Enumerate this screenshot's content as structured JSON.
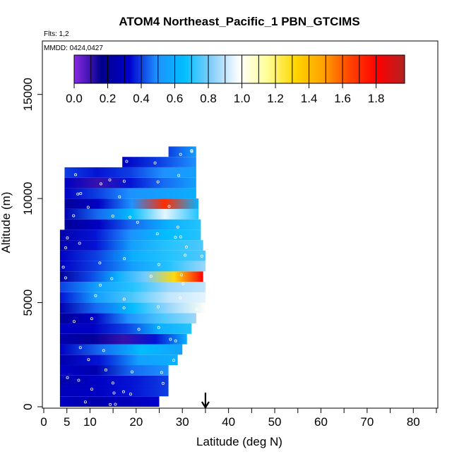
{
  "chart_data": {
    "type": "heatmap",
    "title": "ATOM4 Northeast_Pacific_1 PBN_GTCIMS",
    "annotations": [
      "Flts: 1,2",
      "MMDD: 0424,0427"
    ],
    "xlabel": "Latitude (deg N)",
    "ylabel": "Altitude (m)",
    "xlim": [
      0,
      85
    ],
    "ylim": [
      0,
      17500
    ],
    "x_ticks": [
      "0",
      "5",
      "10",
      "20",
      "30",
      "40",
      "50",
      "60",
      "70",
      "80"
    ],
    "x_tick_values": [
      0,
      5,
      10,
      20,
      30,
      40,
      50,
      60,
      70,
      80
    ],
    "y_ticks": [
      "0",
      "5000",
      "10000",
      "15000"
    ],
    "y_tick_values": [
      0,
      5000,
      10000,
      15000
    ],
    "marker_latitude": 35,
    "colorbar": {
      "ticks": [
        "0.0",
        "0.2",
        "0.4",
        "0.6",
        "0.8",
        "1.0",
        "1.2",
        "1.4",
        "1.6",
        "1.8"
      ],
      "tick_values": [
        0.0,
        0.2,
        0.4,
        0.6,
        0.8,
        1.0,
        1.2,
        1.4,
        1.6,
        1.8
      ],
      "range": [
        0,
        1.97
      ],
      "stops": [
        "#8a2be2",
        "#00008b",
        "#0000cd",
        "#1e90ff",
        "#00bfff",
        "#87cefa",
        "#ffffff",
        "#ffff99",
        "#ffd700",
        "#ffa500",
        "#ff4500",
        "#ff0000",
        "#b22222"
      ]
    },
    "layers": [
      {
        "alt": [
          0,
          500
        ],
        "lat": [
          3.5,
          25
        ],
        "values": [
          0.3,
          0.25,
          0.28,
          0.32
        ]
      },
      {
        "alt": [
          500,
          1000
        ],
        "lat": [
          3.5,
          27
        ],
        "values": [
          0.28,
          0.3,
          0.35,
          0.4
        ]
      },
      {
        "alt": [
          1000,
          1500
        ],
        "lat": [
          3.5,
          27
        ],
        "values": [
          0.25,
          0.3,
          0.35,
          0.4
        ]
      },
      {
        "alt": [
          1500,
          2000
        ],
        "lat": [
          3.5,
          27
        ],
        "values": [
          0.3,
          0.25,
          0.45,
          0.5
        ]
      },
      {
        "alt": [
          2000,
          2500
        ],
        "lat": [
          3.5,
          29
        ],
        "values": [
          0.25,
          0.35,
          0.55,
          0.6
        ]
      },
      {
        "alt": [
          2500,
          3000
        ],
        "lat": [
          3.5,
          30
        ],
        "values": [
          0.3,
          0.45,
          0.65,
          0.55
        ]
      },
      {
        "alt": [
          3000,
          3500
        ],
        "lat": [
          3.5,
          31
        ],
        "values": [
          0.25,
          0.2,
          0.1,
          0.35,
          0.6
        ]
      },
      {
        "alt": [
          3500,
          4000
        ],
        "lat": [
          3.5,
          32
        ],
        "values": [
          0.3,
          0.3,
          0.4,
          0.6,
          0.7
        ]
      },
      {
        "alt": [
          4000,
          4500
        ],
        "lat": [
          3.5,
          33
        ],
        "values": [
          0.2,
          0.3,
          0.5,
          0.75,
          0.85
        ]
      },
      {
        "alt": [
          4500,
          5000
        ],
        "lat": [
          3.5,
          35
        ],
        "values": [
          0.25,
          0.45,
          0.65,
          0.85,
          1.0
        ]
      },
      {
        "alt": [
          5000,
          5500
        ],
        "lat": [
          3.5,
          35
        ],
        "values": [
          0.35,
          0.55,
          0.75,
          0.9,
          0.95
        ]
      },
      {
        "alt": [
          5500,
          6000
        ],
        "lat": [
          3.5,
          35
        ],
        "values": [
          0.4,
          0.55,
          0.7,
          0.85,
          0.9
        ]
      },
      {
        "alt": [
          6000,
          6500
        ],
        "lat": [
          3.5,
          34.5
        ],
        "values": [
          0.2,
          0.4,
          0.6,
          0.8,
          1.3,
          1.8
        ]
      },
      {
        "alt": [
          6500,
          7000
        ],
        "lat": [
          3.5,
          35
        ],
        "values": [
          0.3,
          0.4,
          0.55,
          0.7,
          0.85
        ]
      },
      {
        "alt": [
          7000,
          7500
        ],
        "lat": [
          3.5,
          35
        ],
        "values": [
          0.3,
          0.4,
          0.6,
          0.7,
          0.75
        ]
      },
      {
        "alt": [
          7500,
          8000
        ],
        "lat": [
          3.5,
          34.5
        ],
        "values": [
          0.25,
          0.35,
          0.55,
          0.7,
          0.75
        ]
      },
      {
        "alt": [
          8000,
          8500
        ],
        "lat": [
          3.5,
          34
        ],
        "values": [
          0.25,
          0.35,
          0.5,
          0.65,
          0.7
        ]
      },
      {
        "alt": [
          8500,
          9000
        ],
        "lat": [
          4.5,
          34
        ],
        "values": [
          0.2,
          0.3,
          0.45,
          0.6,
          0.7
        ]
      },
      {
        "alt": [
          9000,
          9500
        ],
        "lat": [
          4.5,
          33.5
        ],
        "values": [
          0.25,
          0.45,
          0.65,
          0.95,
          0.7
        ]
      },
      {
        "alt": [
          9500,
          10000
        ],
        "lat": [
          4.5,
          33.5
        ],
        "values": [
          0.2,
          0.3,
          0.5,
          1.7,
          0.6
        ]
      },
      {
        "alt": [
          10000,
          10500
        ],
        "lat": [
          4.5,
          33
        ],
        "values": [
          0.3,
          0.4,
          0.5,
          0.55,
          0.6
        ]
      },
      {
        "alt": [
          10500,
          11000
        ],
        "lat": [
          4.5,
          33
        ],
        "values": [
          0.3,
          0.1,
          0.35,
          0.45,
          0.55
        ]
      },
      {
        "alt": [
          11000,
          11500
        ],
        "lat": [
          4.5,
          33
        ],
        "values": [
          0.4,
          0.35,
          0.4,
          0.5,
          0.55
        ]
      },
      {
        "alt": [
          11500,
          12000
        ],
        "lat": [
          17,
          33
        ],
        "values": [
          0.3,
          0.4,
          0.5
        ]
      },
      {
        "alt": [
          12000,
          12500
        ],
        "lat": [
          27,
          33
        ],
        "values": [
          0.4,
          0.55
        ]
      }
    ]
  }
}
